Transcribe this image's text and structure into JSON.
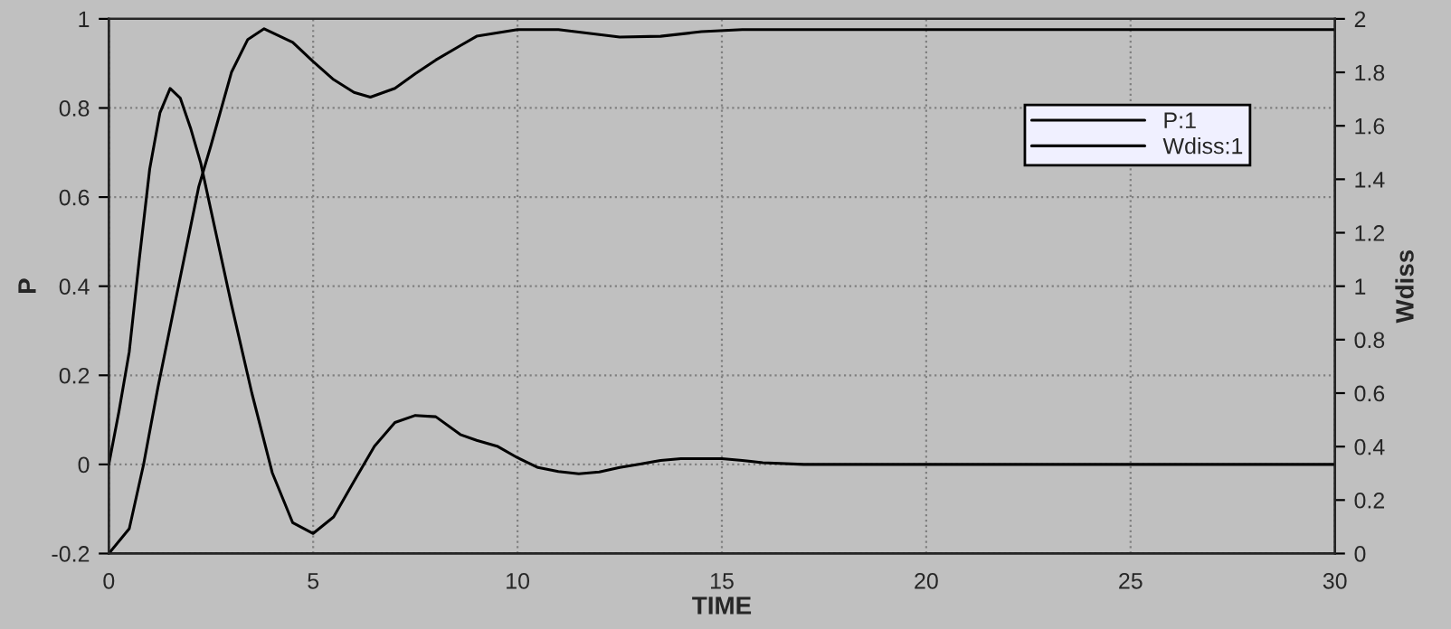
{
  "chart_data": {
    "type": "line",
    "xlabel": "TIME",
    "ylabel": "P",
    "y2label": "Wdiss",
    "xlim": [
      0,
      30
    ],
    "xticks": [
      0,
      5,
      10,
      15,
      20,
      25,
      30
    ],
    "ylim": [
      -0.2,
      1
    ],
    "yticks": [
      -0.2,
      0,
      0.2,
      0.4,
      0.6,
      0.8,
      1
    ],
    "y2lim": [
      0,
      2
    ],
    "y2ticks": [
      0,
      0.2,
      0.4,
      0.6,
      0.8,
      1,
      1.2,
      1.4,
      1.6,
      1.8,
      2
    ],
    "grid": true,
    "legend": "top right",
    "marker": "none",
    "line_style": "solid",
    "series": [
      {
        "name": "P:1",
        "color": "#000000",
        "x": [
          0,
          0.25,
          0.5,
          0.75,
          1,
          1.25,
          1.5,
          1.75,
          2,
          2.25,
          2.5,
          3,
          3.5,
          4,
          4.5,
          5,
          5.5,
          6,
          6.5,
          7,
          7.5,
          8,
          8.6,
          9,
          9.5,
          10,
          10.5,
          11,
          11.5,
          12,
          12.5,
          13,
          13.5,
          14,
          15,
          15.5,
          16,
          17,
          20,
          25,
          30
        ],
        "values": [
          0,
          0.12,
          0.253,
          0.464,
          0.663,
          0.789,
          0.844,
          0.822,
          0.755,
          0.676,
          0.57,
          0.359,
          0.16,
          -0.019,
          -0.131,
          -0.155,
          -0.118,
          -0.038,
          0.041,
          0.094,
          0.11,
          0.107,
          0.067,
          0.054,
          0.041,
          0.015,
          -0.007,
          -0.016,
          -0.021,
          -0.017,
          -0.007,
          0.001,
          0.009,
          0.013,
          0.013,
          0.009,
          0.004,
          0,
          0,
          0,
          0
        ]
      },
      {
        "name": "Wdiss:1",
        "color": "#000000",
        "axis": "y2",
        "x": [
          0,
          0.5,
          0.85,
          1.2,
          1.7,
          2.2,
          2.5,
          3,
          3.4,
          3.8,
          4.5,
          5,
          5.5,
          6,
          6.4,
          7,
          7.5,
          8,
          8.6,
          9,
          10,
          11,
          12,
          12.5,
          13.5,
          14.5,
          15.5,
          20,
          25,
          30
        ],
        "values": [
          0,
          0.093,
          0.333,
          0.62,
          0.997,
          1.372,
          1.527,
          1.8,
          1.923,
          1.963,
          1.912,
          1.84,
          1.773,
          1.725,
          1.707,
          1.74,
          1.795,
          1.846,
          1.9,
          1.935,
          1.96,
          1.96,
          1.941,
          1.932,
          1.935,
          1.952,
          1.96,
          1.96,
          1.96,
          1.96
        ]
      }
    ]
  }
}
